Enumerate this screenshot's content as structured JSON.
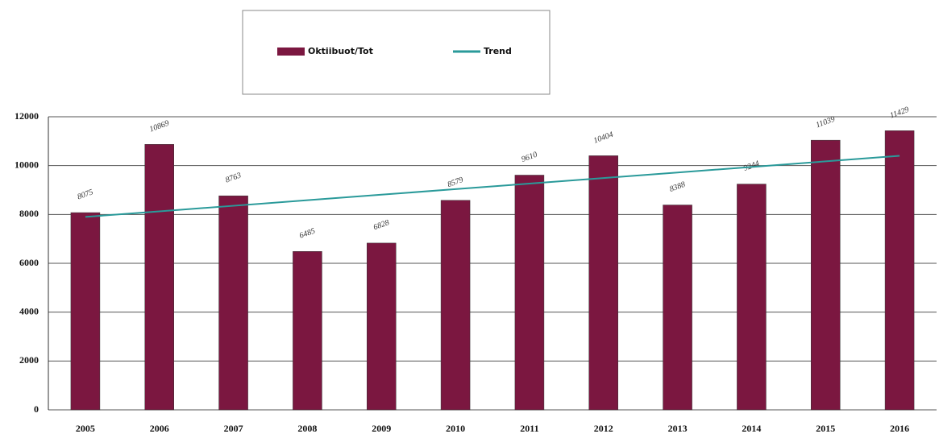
{
  "chart_data": {
    "type": "bar",
    "categories": [
      "2005",
      "2006",
      "2007",
      "2008",
      "2009",
      "2010",
      "2011",
      "2012",
      "2013",
      "2014",
      "2015",
      "2016"
    ],
    "series": [
      {
        "name": "Oktiibuot/Tot",
        "type": "bar",
        "color": "#7b1740",
        "values": [
          8075,
          10869,
          8763,
          6485,
          6828,
          8579,
          9610,
          10404,
          8388,
          9244,
          11039,
          11429
        ]
      },
      {
        "name": "Trend",
        "type": "line",
        "color": "#2a9a9a",
        "values": [
          7900,
          8127,
          8355,
          8582,
          8809,
          9036,
          9264,
          9491,
          9718,
          9945,
          10173,
          10400
        ]
      }
    ],
    "ylim": [
      0,
      12000
    ],
    "yticks": [
      0,
      2000,
      4000,
      6000,
      8000,
      10000,
      12000
    ],
    "grid": true
  }
}
